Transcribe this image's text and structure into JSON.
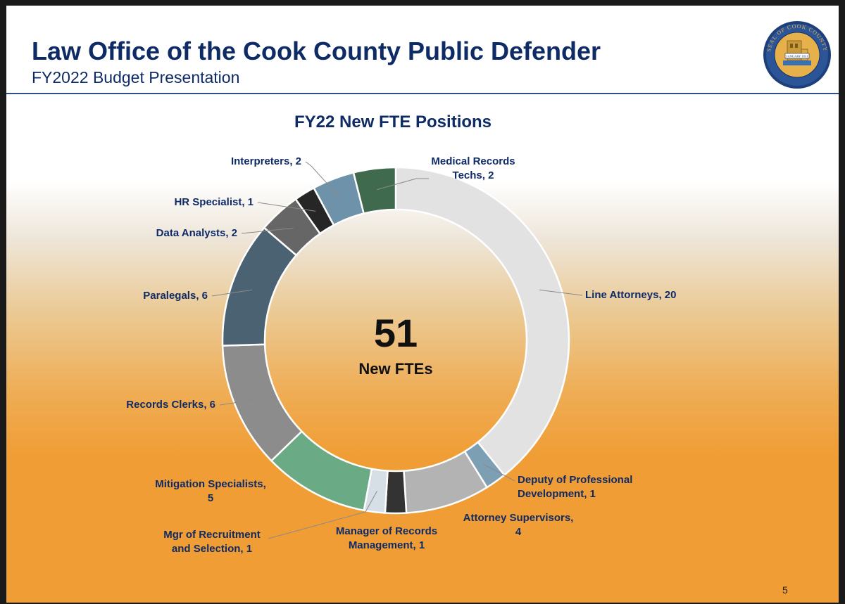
{
  "header": {
    "title": "Law Office of the Cook County Public Defender",
    "subtitle": "FY2022 Budget Presentation",
    "seal_text_top": "SEAL OF COOK COUNTY",
    "seal_text_bottom": "ILLINOIS",
    "seal_banner": "JANUARY 1831"
  },
  "page_number": "5",
  "colors": {
    "navy": "#0f2b66",
    "accent_blue": "#2e4f8c",
    "orange": "#f09d35"
  },
  "chart_data": {
    "type": "pie",
    "variant": "donut",
    "title": "FY22 New FTE Positions",
    "center_value": "51",
    "center_label": "New FTEs",
    "slices": [
      {
        "name": "Line Attorneys",
        "value": 20,
        "label": [
          "Line Attorneys, 20"
        ],
        "color": "#e2e2e2"
      },
      {
        "name": "Deputy of Professional Development",
        "value": 1,
        "label": [
          "Deputy of Professional",
          "Development, 1"
        ],
        "color": "#7d9fb3"
      },
      {
        "name": "Attorney Supervisors",
        "value": 4,
        "label": [
          "Attorney Supervisors,",
          "4"
        ],
        "color": "#b3b3b3"
      },
      {
        "name": "Manager of Records Management",
        "value": 1,
        "label": [
          "Manager of Records",
          "Management, 1"
        ],
        "color": "#333333"
      },
      {
        "name": "Mgr of Recruitment and Selection",
        "value": 1,
        "label": [
          "Mgr of Recruitment",
          "and Selection, 1"
        ],
        "color": "#d6dfe6"
      },
      {
        "name": "Mitigation Specialists",
        "value": 5,
        "label": [
          "Mitigation Specialists,",
          "5"
        ],
        "color": "#6aab85"
      },
      {
        "name": "Records Clerks",
        "value": 6,
        "label": [
          "Records Clerks, 6"
        ],
        "color": "#8c8c8c"
      },
      {
        "name": "Paralegals",
        "value": 6,
        "label": [
          "Paralegals, 6"
        ],
        "color": "#4b6272"
      },
      {
        "name": "Data Analysts",
        "value": 2,
        "label": [
          "Data Analysts, 2"
        ],
        "color": "#666666"
      },
      {
        "name": "HR Specialist",
        "value": 1,
        "label": [
          "HR Specialist, 1"
        ],
        "color": "#262626"
      },
      {
        "name": "Interpreters",
        "value": 2,
        "label": [
          "Interpreters, 2"
        ],
        "color": "#6e92a9"
      },
      {
        "name": "Medical Records Techs",
        "value": 2,
        "label": [
          "Medical Records",
          "Techs, 2"
        ],
        "color": "#3f6a4d"
      }
    ]
  }
}
